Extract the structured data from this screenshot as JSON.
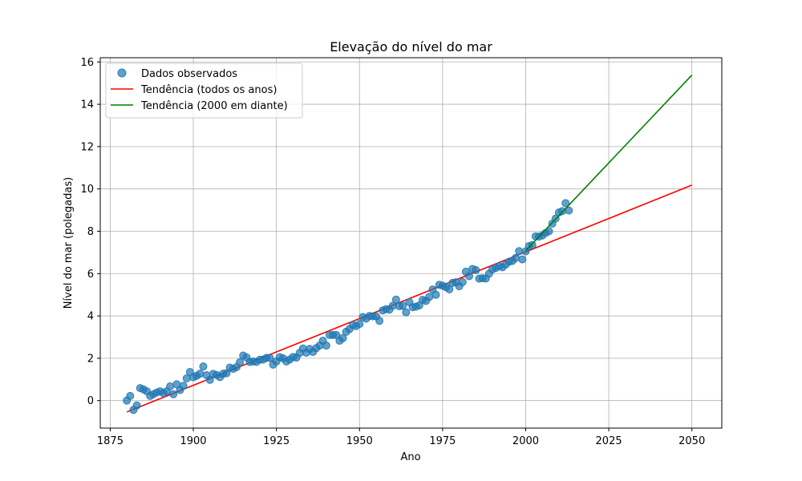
{
  "chart_data": {
    "type": "scatter",
    "title": "Elevação do nível do mar",
    "xlabel": "Ano",
    "ylabel": "Nível do mar (polegadas)",
    "xlim": [
      1872,
      2059
    ],
    "ylim": [
      -1.3,
      16.2
    ],
    "xticks": [
      1875,
      1900,
      1925,
      1950,
      1975,
      2000,
      2025,
      2050
    ],
    "yticks": [
      0,
      2,
      4,
      6,
      8,
      10,
      12,
      14,
      16
    ],
    "grid": true,
    "legend_position": "top-left",
    "series": [
      {
        "name": "Dados observados",
        "kind": "scatter",
        "color": "#1f77b4",
        "x": [
          1880,
          1881,
          1882,
          1883,
          1884,
          1885,
          1886,
          1887,
          1888,
          1889,
          1890,
          1891,
          1892,
          1893,
          1894,
          1895,
          1896,
          1897,
          1898,
          1899,
          1900,
          1901,
          1902,
          1903,
          1904,
          1905,
          1906,
          1907,
          1908,
          1909,
          1910,
          1911,
          1912,
          1913,
          1914,
          1915,
          1916,
          1917,
          1918,
          1919,
          1920,
          1921,
          1922,
          1923,
          1924,
          1925,
          1926,
          1927,
          1928,
          1929,
          1930,
          1931,
          1932,
          1933,
          1934,
          1935,
          1936,
          1937,
          1938,
          1939,
          1940,
          1941,
          1942,
          1943,
          1944,
          1945,
          1946,
          1947,
          1948,
          1949,
          1950,
          1951,
          1952,
          1953,
          1954,
          1955,
          1956,
          1957,
          1958,
          1959,
          1960,
          1961,
          1962,
          1963,
          1964,
          1965,
          1966,
          1967,
          1968,
          1969,
          1970,
          1971,
          1972,
          1973,
          1974,
          1975,
          1976,
          1977,
          1978,
          1979,
          1980,
          1981,
          1982,
          1983,
          1984,
          1985,
          1986,
          1987,
          1988,
          1989,
          1990,
          1991,
          1992,
          1993,
          1994,
          1995,
          1996,
          1997,
          1998,
          1999,
          2000,
          2001,
          2002,
          2003,
          2004,
          2005,
          2006,
          2007,
          2008,
          2009,
          2010,
          2011,
          2012,
          2013
        ],
        "y": [
          0.0,
          0.22,
          -0.44,
          -0.23,
          0.59,
          0.53,
          0.44,
          0.22,
          0.3,
          0.38,
          0.44,
          0.35,
          0.44,
          0.67,
          0.3,
          0.77,
          0.5,
          0.7,
          1.05,
          1.35,
          1.1,
          1.17,
          1.27,
          1.61,
          1.2,
          0.98,
          1.26,
          1.21,
          1.11,
          1.27,
          1.29,
          1.56,
          1.5,
          1.58,
          1.81,
          2.13,
          2.04,
          1.82,
          1.85,
          1.83,
          1.93,
          1.94,
          2.02,
          2.02,
          1.7,
          1.85,
          2.05,
          2.0,
          1.85,
          1.94,
          2.06,
          2.03,
          2.25,
          2.46,
          2.26,
          2.44,
          2.3,
          2.48,
          2.6,
          2.83,
          2.6,
          3.1,
          3.1,
          3.1,
          2.83,
          2.95,
          3.25,
          3.38,
          3.57,
          3.52,
          3.62,
          3.95,
          3.87,
          4.0,
          3.98,
          3.98,
          3.77,
          4.26,
          4.32,
          4.3,
          4.48,
          4.77,
          4.46,
          4.48,
          4.17,
          4.65,
          4.41,
          4.44,
          4.5,
          4.76,
          4.71,
          4.9,
          5.25,
          5.0,
          5.47,
          5.43,
          5.36,
          5.26,
          5.56,
          5.59,
          5.4,
          5.6,
          6.09,
          5.88,
          6.22,
          6.16,
          5.76,
          5.78,
          5.77,
          6.0,
          6.2,
          6.27,
          6.35,
          6.3,
          6.43,
          6.56,
          6.6,
          6.74,
          7.06,
          6.67,
          7.05,
          7.3,
          7.35,
          7.76,
          7.75,
          7.8,
          7.92,
          8.0,
          8.36,
          8.6,
          8.89,
          8.95,
          9.33,
          8.98
        ]
      },
      {
        "name": "Tendência (todos os anos)",
        "kind": "line",
        "color": "#ff0000",
        "x": [
          1880,
          2050
        ],
        "y": [
          -0.54,
          10.18
        ]
      },
      {
        "name": "Tendência (2000 em diante)",
        "kind": "line",
        "color": "#008000",
        "x": [
          2000,
          2050
        ],
        "y": [
          7.08,
          15.38
        ]
      }
    ]
  }
}
